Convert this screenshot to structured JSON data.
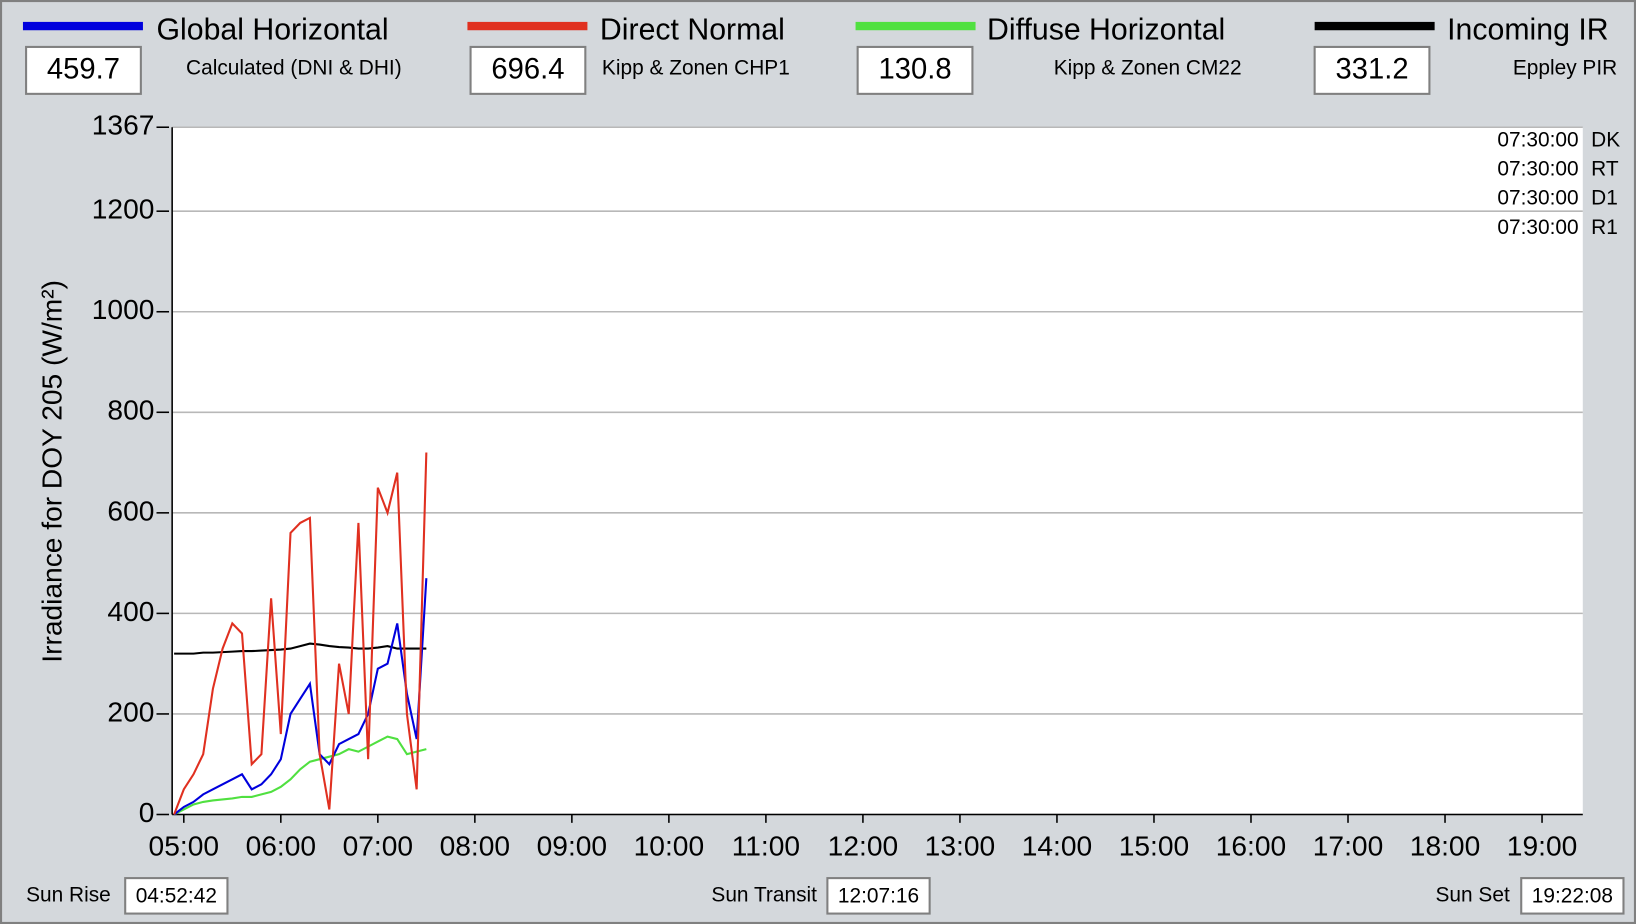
{
  "chart_data": {
    "type": "line",
    "ylabel": "Irradiance for DOY 205 (W/m²)",
    "xlim": [
      4.88,
      19.42
    ],
    "xticks": [
      {
        "value": 5,
        "label": "05:00"
      },
      {
        "value": 6,
        "label": "06:00"
      },
      {
        "value": 7,
        "label": "07:00"
      },
      {
        "value": 8,
        "label": "08:00"
      },
      {
        "value": 9,
        "label": "09:00"
      },
      {
        "value": 10,
        "label": "10:00"
      },
      {
        "value": 11,
        "label": "11:00"
      },
      {
        "value": 12,
        "label": "12:00"
      },
      {
        "value": 13,
        "label": "13:00"
      },
      {
        "value": 14,
        "label": "14:00"
      },
      {
        "value": 15,
        "label": "15:00"
      },
      {
        "value": 16,
        "label": "16:00"
      },
      {
        "value": 17,
        "label": "17:00"
      },
      {
        "value": 18,
        "label": "18:00"
      },
      {
        "value": 19,
        "label": "19:00"
      }
    ],
    "ylim": [
      0,
      1367
    ],
    "yticks": [
      0,
      200,
      400,
      600,
      800,
      1000,
      1200,
      1367
    ],
    "grid": true,
    "x": [
      4.9,
      5.0,
      5.1,
      5.2,
      5.3,
      5.4,
      5.5,
      5.6,
      5.7,
      5.8,
      5.9,
      6.0,
      6.1,
      6.2,
      6.3,
      6.4,
      6.5,
      6.6,
      6.7,
      6.8,
      6.9,
      7.0,
      7.1,
      7.2,
      7.3,
      7.4,
      7.5
    ],
    "series": [
      {
        "name": "Global Horizontal",
        "color": "#0000dd",
        "current": 459.7,
        "source": "Calculated (DNI & DHI)",
        "values": [
          0,
          15,
          25,
          40,
          50,
          60,
          70,
          80,
          50,
          60,
          80,
          110,
          200,
          230,
          260,
          120,
          100,
          140,
          150,
          160,
          200,
          290,
          300,
          380,
          240,
          150,
          470
        ]
      },
      {
        "name": "Direct Normal",
        "color": "#e03020",
        "current": 696.4,
        "source": "Kipp & Zonen CHP1",
        "values": [
          0,
          50,
          80,
          120,
          250,
          330,
          380,
          360,
          100,
          120,
          430,
          160,
          560,
          580,
          590,
          120,
          10,
          300,
          200,
          580,
          110,
          650,
          600,
          680,
          200,
          50,
          720
        ]
      },
      {
        "name": "Diffuse Horizontal",
        "color": "#50e040",
        "current": 130.8,
        "source": "Kipp & Zonen CM22",
        "values": [
          0,
          10,
          20,
          25,
          28,
          30,
          32,
          35,
          35,
          40,
          45,
          55,
          70,
          90,
          105,
          110,
          115,
          120,
          130,
          125,
          135,
          145,
          155,
          150,
          120,
          125,
          130
        ]
      },
      {
        "name": "Incoming IR",
        "color": "#000000",
        "current": 331.2,
        "source": "Eppley PIR",
        "values": [
          320,
          320,
          320,
          322,
          322,
          323,
          324,
          325,
          325,
          326,
          327,
          328,
          330,
          335,
          340,
          338,
          335,
          333,
          332,
          330,
          330,
          332,
          335,
          330,
          330,
          330,
          330
        ]
      }
    ],
    "stamps": [
      {
        "time": "07:30:00",
        "code": "DK"
      },
      {
        "time": "07:30:00",
        "code": "RT"
      },
      {
        "time": "07:30:00",
        "code": "D1"
      },
      {
        "time": "07:30:00",
        "code": "R1"
      }
    ],
    "sun": [
      {
        "label": "Sun Rise",
        "time": "04:52:42"
      },
      {
        "label": "Sun Transit",
        "time": "12:07:16"
      },
      {
        "label": "Sun Set",
        "time": "19:22:08"
      }
    ]
  }
}
